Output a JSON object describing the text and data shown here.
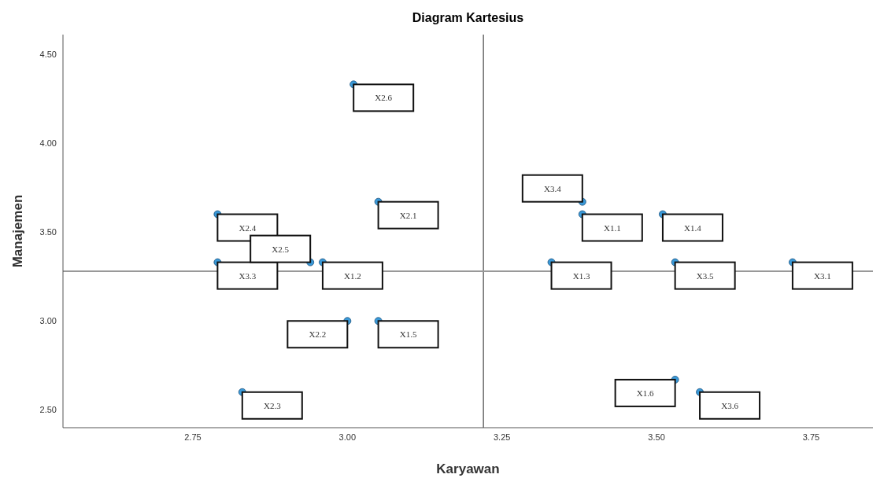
{
  "chart_data": {
    "type": "scatter",
    "title": "Diagram Kartesius",
    "xlabel": "Karyawan",
    "ylabel": "Manajemen",
    "x": [
      3.01,
      2.79,
      3.05,
      2.79,
      2.94,
      2.96,
      3.0,
      3.05,
      2.83,
      3.38,
      3.38,
      3.51,
      3.33,
      3.53,
      3.72,
      3.53,
      3.57
    ],
    "values": [
      4.33,
      3.6,
      3.67,
      3.33,
      3.33,
      3.33,
      3.0,
      3.0,
      2.6,
      3.67,
      3.6,
      3.6,
      3.33,
      3.33,
      3.33,
      2.67,
      2.6
    ],
    "color": "#3a9ad9",
    "marker": "circle",
    "xlim": [
      2.54,
      3.85
    ],
    "xticks": [
      {
        "value": 2.75,
        "label": "2.75"
      },
      {
        "value": 3.0,
        "label": "3.00"
      },
      {
        "value": 3.25,
        "label": "3.25"
      },
      {
        "value": 3.5,
        "label": "3.50"
      },
      {
        "value": 3.75,
        "label": "3.75"
      }
    ],
    "ylim": [
      2.4,
      4.61
    ],
    "yticks": [
      {
        "value": 2.5,
        "label": "2.50"
      },
      {
        "value": 3.0,
        "label": "3.00"
      },
      {
        "value": 3.5,
        "label": "3.50"
      },
      {
        "value": 4.0,
        "label": "4.00"
      },
      {
        "value": 4.5,
        "label": "4.50"
      }
    ],
    "ref_lines": [
      {
        "axis": "x",
        "value": 3.22,
        "color": "#555555"
      },
      {
        "axis": "y",
        "value": 3.28,
        "color": "#999999"
      }
    ],
    "grid": false,
    "legend": false,
    "annotations": [
      {
        "text": "X2.6",
        "x": 3.01,
        "y": 4.33
      },
      {
        "text": "X2.4",
        "x": 2.79,
        "y": 3.6
      },
      {
        "text": "X2.1",
        "x": 3.05,
        "y": 3.67
      },
      {
        "text": "X3.3",
        "x": 2.79,
        "y": 3.33
      },
      {
        "text": "X2.5",
        "x": 2.94,
        "y": 3.33
      },
      {
        "text": "X1.2",
        "x": 2.96,
        "y": 3.33
      },
      {
        "text": "X2.2",
        "x": 3.0,
        "y": 3.0
      },
      {
        "text": "X1.5",
        "x": 3.05,
        "y": 3.0
      },
      {
        "text": "X2.3",
        "x": 2.83,
        "y": 2.6
      },
      {
        "text": "X3.4",
        "x": 3.38,
        "y": 3.67
      },
      {
        "text": "X1.1",
        "x": 3.38,
        "y": 3.6
      },
      {
        "text": "X1.4",
        "x": 3.51,
        "y": 3.6
      },
      {
        "text": "X1.3",
        "x": 3.33,
        "y": 3.33
      },
      {
        "text": "X3.5",
        "x": 3.53,
        "y": 3.33
      },
      {
        "text": "X3.1",
        "x": 3.72,
        "y": 3.33
      },
      {
        "text": "X1.6",
        "x": 3.53,
        "y": 2.67
      },
      {
        "text": "X3.6",
        "x": 3.57,
        "y": 2.6
      }
    ]
  }
}
